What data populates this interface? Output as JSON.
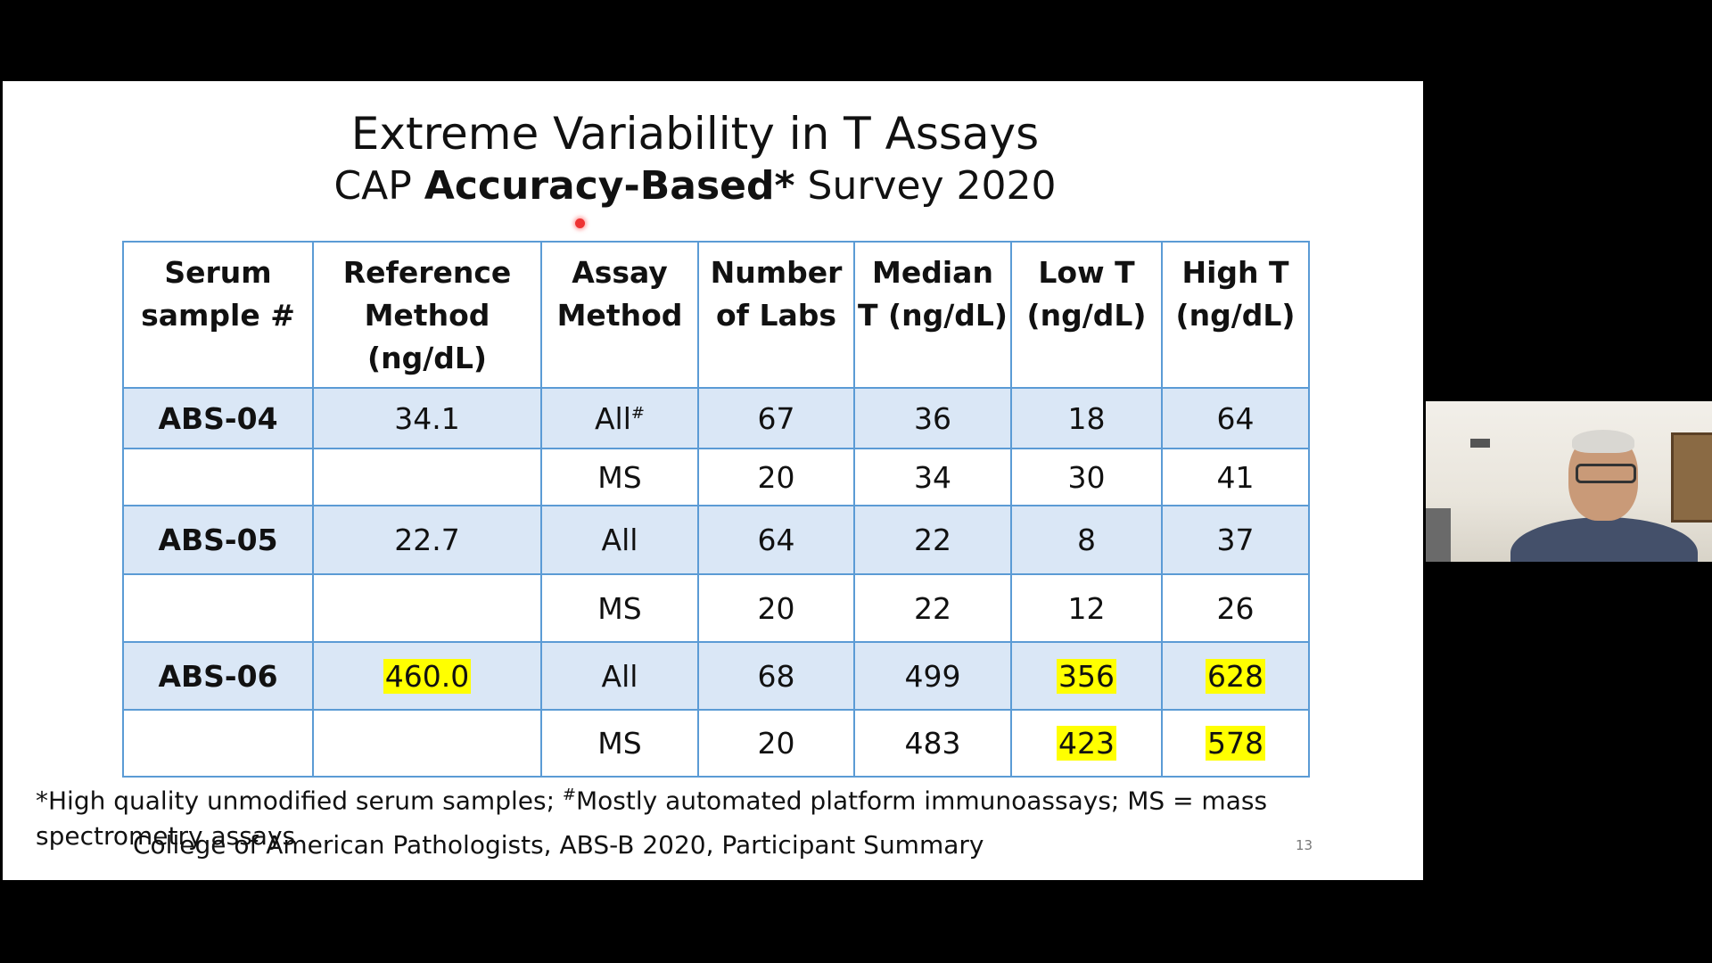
{
  "slide": {
    "title": "Extreme Variability in T Assays",
    "subtitle_pre": "CAP ",
    "subtitle_bold": "Accuracy-Based*",
    "subtitle_post": " Survey 2020",
    "headers": [
      [
        "Serum",
        "sample #"
      ],
      [
        "Reference",
        "Method",
        "(ng/dL)"
      ],
      [
        "Assay",
        "Method"
      ],
      [
        "Number",
        "of Labs"
      ],
      [
        "Median",
        "T (ng/dL)"
      ],
      [
        "Low T",
        "(ng/dL)"
      ],
      [
        "High T",
        "(ng/dL)"
      ]
    ],
    "rows": [
      {
        "sample": "ABS-04",
        "reference": "34.1",
        "assay": "All",
        "assay_sup": "#",
        "labs": "67",
        "median": "36",
        "low": "18",
        "high": "64"
      },
      {
        "sample": "",
        "reference": "",
        "assay": "MS",
        "assay_sup": "",
        "labs": "20",
        "median": "34",
        "low": "30",
        "high": "41"
      },
      {
        "sample": "ABS-05",
        "reference": "22.7",
        "assay": "All",
        "assay_sup": "",
        "labs": "64",
        "median": "22",
        "low": "8",
        "high": "37"
      },
      {
        "sample": "",
        "reference": "",
        "assay": "MS",
        "assay_sup": "",
        "labs": "20",
        "median": "22",
        "low": "12",
        "high": "26"
      },
      {
        "sample": "ABS-06",
        "reference": "460.0",
        "assay": "All",
        "assay_sup": "",
        "labs": "68",
        "median": "499",
        "low": "356",
        "high": "628"
      },
      {
        "sample": "",
        "reference": "",
        "assay": "MS",
        "assay_sup": "",
        "labs": "20",
        "median": "483",
        "low": "423",
        "high": "578"
      }
    ],
    "footnote_part1": "*High quality unmodified serum samples; ",
    "footnote_sup": "#",
    "footnote_part2": "Mostly automated platform immunoassays; MS = mass spectrometry assays",
    "source": "College of American Pathologists, ABS-B 2020, Participant Summary",
    "page_number": "13",
    "highlight_color": "#ffff00",
    "shade_color": "#dae7f6",
    "border_color": "#5b9bd5"
  },
  "webcam": {
    "icon": "presenter-video-icon"
  }
}
